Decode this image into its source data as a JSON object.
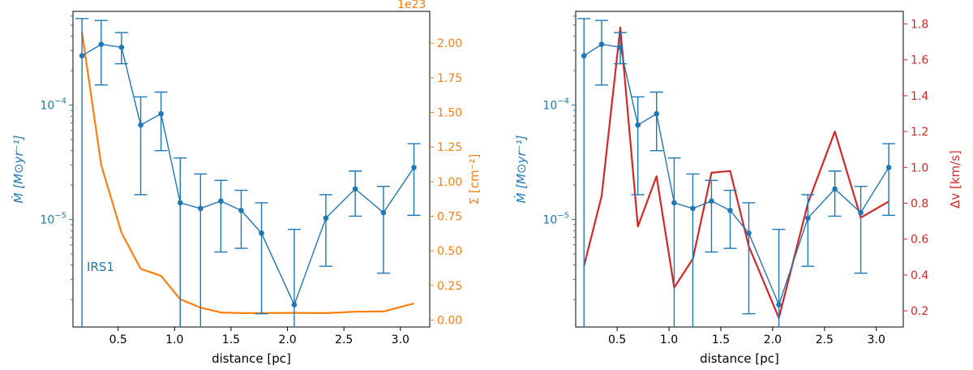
{
  "colors": {
    "accretion": "#1f77b4",
    "surface_density": "#ff7f0e",
    "velocity_dispersion": "#d62728",
    "axes": "#000000"
  },
  "chart_data": [
    {
      "type": "line",
      "title": "",
      "xlabel": "distance [pc]",
      "xlim": [
        0.1,
        3.26
      ],
      "x_ticks": [
        0.5,
        1.0,
        1.5,
        2.0,
        2.5,
        3.0
      ],
      "x_tick_labels": [
        "0.5",
        "1.0",
        "1.5",
        "2.0",
        "2.5",
        "3.0"
      ],
      "annotation": "IRS1",
      "left_axis": {
        "label": "Ṁ [M⊙yr⁻¹]",
        "scale": "log",
        "ylim": [
          1.15e-06,
          0.00066
        ],
        "tick_labels": [
          {
            "value": 0.0001,
            "base": "10",
            "exp": "−4"
          },
          {
            "value": 1e-05,
            "base": "10",
            "exp": "−5"
          }
        ]
      },
      "right_axis": {
        "label": "Σ [cm⁻²]",
        "scale": "linear",
        "offset_text": "1e23",
        "ylim": [
          -0.05,
          2.23
        ],
        "ticks": [
          0.0,
          0.25,
          0.5,
          0.75,
          1.0,
          1.25,
          1.5,
          1.75,
          2.0
        ],
        "tick_labels": [
          "0.00",
          "0.25",
          "0.50",
          "0.75",
          "1.00",
          "1.25",
          "1.50",
          "1.75",
          "2.00"
        ]
      },
      "series": [
        {
          "name": "mass accretion rate",
          "axis": "left",
          "marker": "o",
          "x": [
            0.18,
            0.35,
            0.53,
            0.7,
            0.88,
            1.05,
            1.23,
            1.41,
            1.59,
            1.77,
            2.06,
            2.34,
            2.6,
            2.85,
            3.12
          ],
          "y": [
            0.00027,
            0.00034,
            0.00032,
            6.7e-05,
            8.4e-05,
            1.4e-05,
            1.25e-05,
            1.45e-05,
            1.2e-05,
            7.6e-06,
            1.8e-06,
            1.03e-05,
            1.85e-05,
            1.15e-05,
            2.85e-05
          ],
          "yerr_low": [
            1e-06,
            0.00015,
            0.00023,
            1.65e-05,
            4e-05,
            1e-06,
            1e-06,
            5.2e-06,
            5.6e-06,
            1.5e-06,
            1e-06,
            3.9e-06,
            1.07e-05,
            3.4e-06,
            1.09e-05
          ],
          "yerr_high": [
            0.00057,
            0.00055,
            0.00043,
            0.000118,
            0.00013,
            3.45e-05,
            2.5e-05,
            2.2e-05,
            1.8e-05,
            1.4e-05,
            8.2e-06,
            1.65e-05,
            2.65e-05,
            1.95e-05,
            4.6e-05
          ]
        },
        {
          "name": "surface density",
          "axis": "right",
          "x": [
            0.18,
            0.35,
            0.53,
            0.7,
            0.88,
            1.05,
            1.23,
            1.41,
            1.59,
            1.77,
            2.06,
            2.34,
            2.6,
            2.85,
            3.12
          ],
          "y": [
            2.08,
            1.12,
            0.63,
            0.37,
            0.32,
            0.15,
            0.09,
            0.055,
            0.05,
            0.05,
            0.052,
            0.05,
            0.06,
            0.062,
            0.12
          ]
        }
      ]
    },
    {
      "type": "line",
      "title": "",
      "xlabel": "distance [pc]",
      "xlim": [
        0.1,
        3.26
      ],
      "x_ticks": [
        0.5,
        1.0,
        1.5,
        2.0,
        2.5,
        3.0
      ],
      "x_tick_labels": [
        "0.5",
        "1.0",
        "1.5",
        "2.0",
        "2.5",
        "3.0"
      ],
      "left_axis": {
        "label": "Ṁ [M⊙yr⁻¹]",
        "scale": "log",
        "ylim": [
          1.15e-06,
          0.00066
        ],
        "tick_labels": [
          {
            "value": 0.0001,
            "base": "10",
            "exp": "−4"
          },
          {
            "value": 1e-05,
            "base": "10",
            "exp": "−5"
          }
        ]
      },
      "right_axis": {
        "label": "Δv [km/s]",
        "scale": "linear",
        "ylim": [
          0.11,
          1.87
        ],
        "ticks": [
          0.2,
          0.4,
          0.6,
          0.8,
          1.0,
          1.2,
          1.4,
          1.6,
          1.8
        ],
        "tick_labels": [
          "0.2",
          "0.4",
          "0.6",
          "0.8",
          "1.0",
          "1.2",
          "1.4",
          "1.6",
          "1.8"
        ]
      },
      "series": [
        {
          "name": "mass accretion rate",
          "axis": "left",
          "marker": "o",
          "x": [
            0.18,
            0.35,
            0.53,
            0.7,
            0.88,
            1.05,
            1.23,
            1.41,
            1.59,
            1.77,
            2.06,
            2.34,
            2.6,
            2.85,
            3.12
          ],
          "y": [
            0.00027,
            0.00034,
            0.00032,
            6.7e-05,
            8.4e-05,
            1.4e-05,
            1.25e-05,
            1.45e-05,
            1.2e-05,
            7.6e-06,
            1.8e-06,
            1.03e-05,
            1.85e-05,
            1.15e-05,
            2.85e-05
          ],
          "yerr_low": [
            1e-06,
            0.00015,
            0.00023,
            1.65e-05,
            4e-05,
            1e-06,
            1e-06,
            5.2e-06,
            5.6e-06,
            1.5e-06,
            1e-06,
            3.9e-06,
            1.07e-05,
            3.4e-06,
            1.09e-05
          ],
          "yerr_high": [
            0.00057,
            0.00055,
            0.00043,
            0.000118,
            0.00013,
            3.45e-05,
            2.5e-05,
            2.2e-05,
            1.8e-05,
            1.4e-05,
            8.2e-06,
            1.65e-05,
            2.65e-05,
            1.95e-05,
            4.6e-05
          ]
        },
        {
          "name": "velocity dispersion",
          "axis": "right",
          "x": [
            0.18,
            0.35,
            0.53,
            0.7,
            0.88,
            1.05,
            1.23,
            1.41,
            1.59,
            1.77,
            2.06,
            2.34,
            2.6,
            2.85,
            3.12
          ],
          "y": [
            0.45,
            0.84,
            1.78,
            0.67,
            0.95,
            0.33,
            0.49,
            0.97,
            0.98,
            0.56,
            0.16,
            0.8,
            1.2,
            0.72,
            0.81
          ]
        }
      ]
    }
  ]
}
